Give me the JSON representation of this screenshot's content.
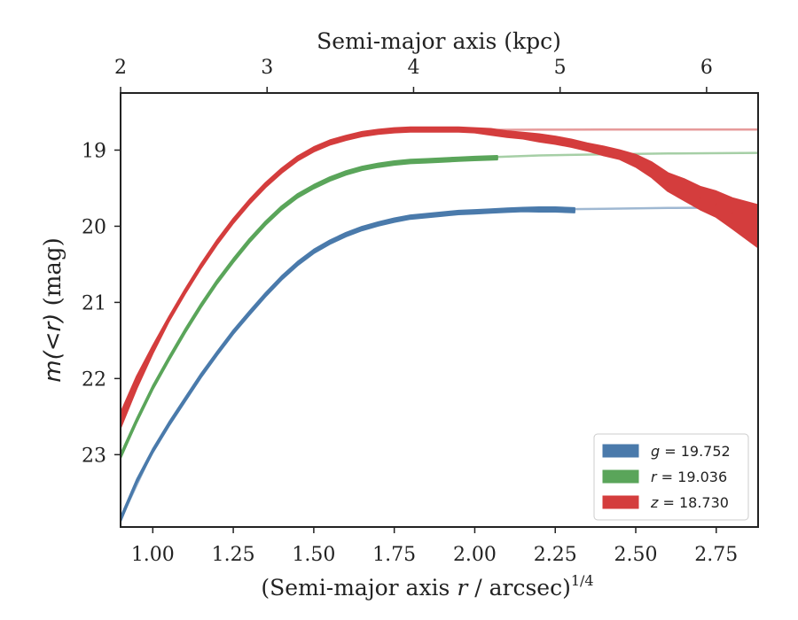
{
  "chart_data": {
    "type": "line",
    "xlabel": "(Semi-major axis r / arcsec)^{1/4}",
    "xlabel_parts": {
      "pre": "(Semi-major axis ",
      "var": "r",
      "post": " / arcsec)",
      "exp": "1/4"
    },
    "x2label": "Semi-major axis (kpc)",
    "ylabel": "m(<r) (mag)",
    "ylabel_parts": {
      "math": "m(<r)",
      "unit": " (mag)"
    },
    "xlim": [
      0.9,
      2.88
    ],
    "ylim": [
      23.95,
      18.25
    ],
    "y_inverted": true,
    "x_ticks": [
      "1.00",
      "1.25",
      "1.50",
      "1.75",
      "2.00",
      "2.25",
      "2.50",
      "2.75"
    ],
    "x_tick_values": [
      1.0,
      1.25,
      1.5,
      1.75,
      2.0,
      2.25,
      2.5,
      2.75
    ],
    "x2_ticks": [
      "2",
      "3",
      "4",
      "5",
      "6"
    ],
    "x2_tick_positions": [
      0.9,
      1.355,
      1.81,
      2.265,
      2.72
    ],
    "y_ticks": [
      "19",
      "20",
      "21",
      "22",
      "23"
    ],
    "y_tick_values": [
      19,
      20,
      21,
      22,
      23
    ],
    "grid": false,
    "legend_position": "lower-right",
    "series": [
      {
        "name": "g = 19.752",
        "legend_var": "g",
        "legend_value": "19.752",
        "color": "#4a7aab",
        "model_color": "#9fb8d2",
        "asymptote": 19.752,
        "x": [
          0.9,
          0.95,
          1.0,
          1.05,
          1.1,
          1.15,
          1.2,
          1.25,
          1.3,
          1.35,
          1.4,
          1.45,
          1.5,
          1.55,
          1.6,
          1.65,
          1.7,
          1.75,
          1.8,
          1.85,
          1.9,
          1.95,
          2.0,
          2.05,
          2.1,
          2.15,
          2.2,
          2.25,
          2.31
        ],
        "y": [
          23.85,
          23.35,
          22.95,
          22.6,
          22.28,
          21.96,
          21.67,
          21.39,
          21.14,
          20.9,
          20.68,
          20.49,
          20.33,
          20.21,
          20.11,
          20.03,
          19.97,
          19.92,
          19.88,
          19.86,
          19.84,
          19.82,
          19.81,
          19.8,
          19.79,
          19.78,
          19.78,
          19.78,
          19.79
        ],
        "band": [
          0.03,
          0.02,
          0.02,
          0.02,
          0.02,
          0.02,
          0.02,
          0.02,
          0.02,
          0.02,
          0.02,
          0.02,
          0.02,
          0.02,
          0.02,
          0.02,
          0.02,
          0.02,
          0.02,
          0.02,
          0.02,
          0.02,
          0.02,
          0.02,
          0.02,
          0.02,
          0.03,
          0.03,
          0.03
        ],
        "model_x": [
          0.9,
          1.0,
          1.1,
          1.2,
          1.3,
          1.4,
          1.5,
          1.6,
          1.7,
          1.8,
          1.9,
          2.0,
          2.2,
          2.4,
          2.6,
          2.88
        ],
        "model_y": [
          23.85,
          22.95,
          22.28,
          21.67,
          21.14,
          20.68,
          20.33,
          20.11,
          19.97,
          19.88,
          19.84,
          19.81,
          19.78,
          19.77,
          19.76,
          19.752
        ]
      },
      {
        "name": "r = 19.036",
        "legend_var": "r",
        "legend_value": "19.036",
        "color": "#5aa55a",
        "model_color": "#a6cfa6",
        "asymptote": 19.036,
        "x": [
          0.9,
          0.95,
          1.0,
          1.05,
          1.1,
          1.15,
          1.2,
          1.25,
          1.3,
          1.35,
          1.4,
          1.45,
          1.5,
          1.55,
          1.6,
          1.65,
          1.7,
          1.75,
          1.8,
          1.85,
          1.9,
          1.95,
          2.0,
          2.07
        ],
        "y": [
          23.02,
          22.55,
          22.12,
          21.74,
          21.38,
          21.04,
          20.73,
          20.45,
          20.19,
          19.96,
          19.76,
          19.6,
          19.48,
          19.38,
          19.3,
          19.24,
          19.2,
          19.17,
          19.15,
          19.14,
          19.13,
          19.12,
          19.11,
          19.1
        ],
        "band": [
          0.03,
          0.02,
          0.02,
          0.02,
          0.02,
          0.02,
          0.02,
          0.02,
          0.02,
          0.02,
          0.02,
          0.02,
          0.02,
          0.02,
          0.02,
          0.02,
          0.02,
          0.02,
          0.02,
          0.02,
          0.02,
          0.02,
          0.02,
          0.02
        ],
        "model_x": [
          0.9,
          1.0,
          1.1,
          1.2,
          1.3,
          1.4,
          1.5,
          1.6,
          1.7,
          1.8,
          1.9,
          2.0,
          2.2,
          2.4,
          2.6,
          2.88
        ],
        "model_y": [
          23.02,
          22.12,
          21.38,
          20.73,
          20.19,
          19.76,
          19.48,
          19.3,
          19.2,
          19.15,
          19.12,
          19.1,
          19.07,
          19.055,
          19.045,
          19.036
        ]
      },
      {
        "name": "z = 18.730",
        "legend_var": "z",
        "legend_value": "18.730",
        "color": "#d43d3d",
        "model_color": "#e69a9a",
        "asymptote": 18.73,
        "x": [
          0.9,
          0.95,
          1.0,
          1.05,
          1.1,
          1.15,
          1.2,
          1.25,
          1.3,
          1.35,
          1.4,
          1.45,
          1.5,
          1.55,
          1.6,
          1.65,
          1.7,
          1.75,
          1.8,
          1.85,
          1.9,
          1.95,
          2.0,
          2.05,
          2.1,
          2.15,
          2.2,
          2.25,
          2.3,
          2.35,
          2.4,
          2.45,
          2.5,
          2.55,
          2.6,
          2.65,
          2.7,
          2.75,
          2.8,
          2.88
        ],
        "y": [
          22.55,
          22.05,
          21.62,
          21.22,
          20.86,
          20.52,
          20.21,
          19.93,
          19.68,
          19.46,
          19.27,
          19.11,
          18.99,
          18.9,
          18.84,
          18.79,
          18.76,
          18.74,
          18.73,
          18.73,
          18.73,
          18.73,
          18.74,
          18.76,
          18.79,
          18.81,
          18.84,
          18.87,
          18.91,
          18.96,
          19.01,
          19.06,
          19.14,
          19.26,
          19.42,
          19.52,
          19.63,
          19.71,
          19.83,
          20.0
        ],
        "band": [
          0.1,
          0.08,
          0.05,
          0.03,
          0.03,
          0.03,
          0.03,
          0.03,
          0.03,
          0.03,
          0.03,
          0.03,
          0.03,
          0.03,
          0.03,
          0.03,
          0.03,
          0.03,
          0.03,
          0.03,
          0.03,
          0.03,
          0.03,
          0.04,
          0.04,
          0.04,
          0.05,
          0.05,
          0.05,
          0.05,
          0.06,
          0.06,
          0.08,
          0.1,
          0.12,
          0.14,
          0.15,
          0.17,
          0.2,
          0.28
        ],
        "model_x": [
          0.9,
          1.0,
          1.1,
          1.2,
          1.3,
          1.4,
          1.5,
          1.6,
          1.7,
          1.8,
          1.9,
          2.0,
          2.2,
          2.4,
          2.6,
          2.88
        ],
        "model_y": [
          22.55,
          21.62,
          20.86,
          20.21,
          19.68,
          19.27,
          18.99,
          18.84,
          18.77,
          18.745,
          18.74,
          18.735,
          18.732,
          18.731,
          18.73,
          18.73
        ]
      }
    ]
  }
}
